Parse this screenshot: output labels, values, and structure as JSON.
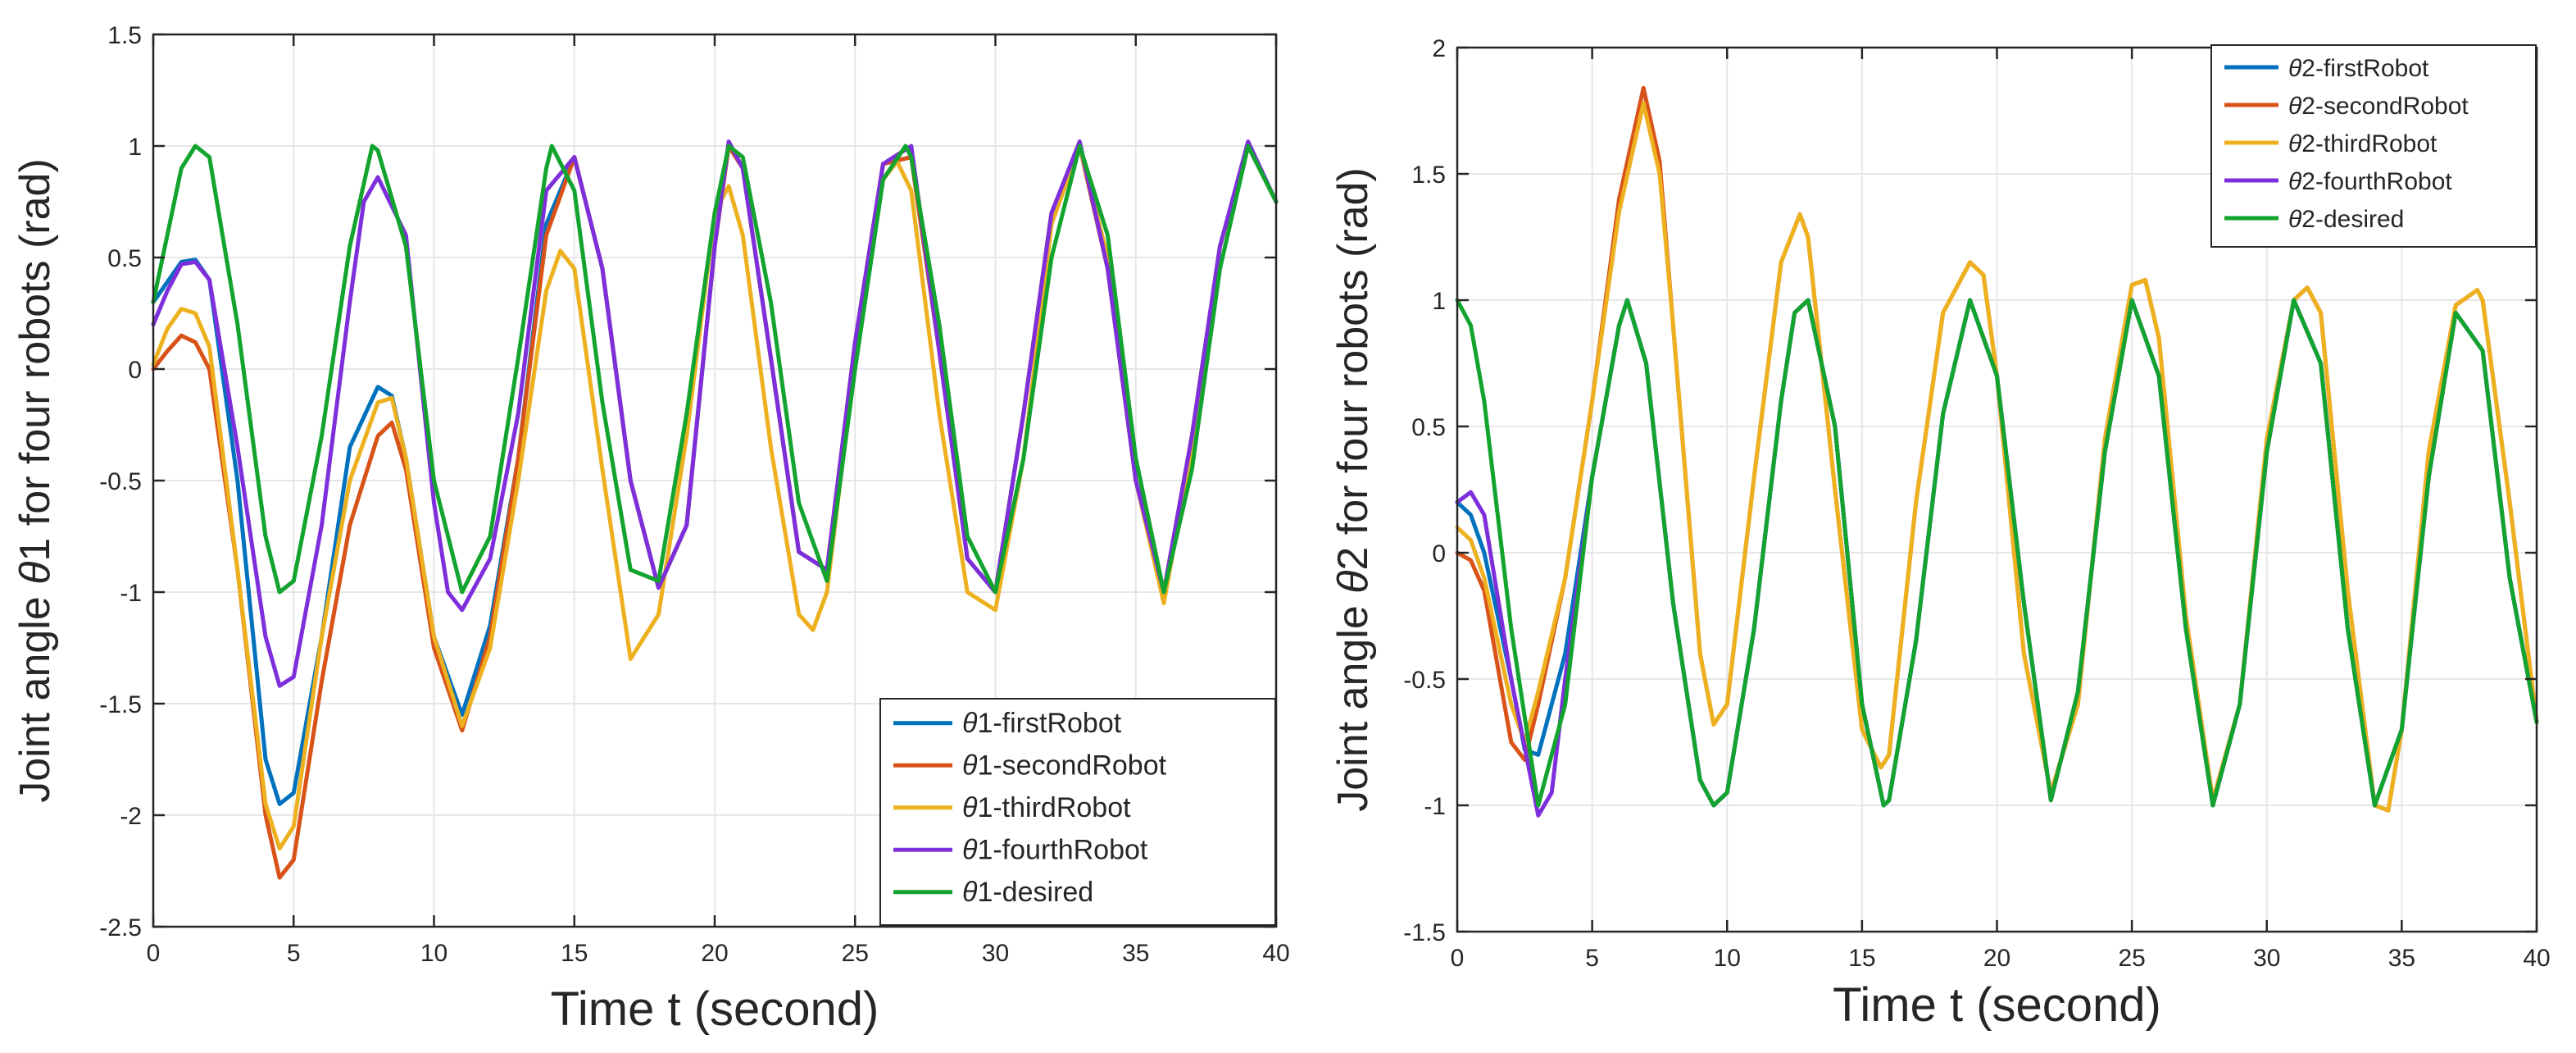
{
  "chart_data": [
    {
      "type": "line",
      "title": "",
      "xlabel": "Time t (second)",
      "ylabel_prefix": "Joint angle ",
      "ylabel_symbol": "θ",
      "ylabel_suffix": "1 for four robots (rad)",
      "xlim": [
        0,
        40
      ],
      "ylim": [
        -2.5,
        1.5
      ],
      "xticks": [
        0,
        5,
        10,
        15,
        20,
        25,
        30,
        35,
        40
      ],
      "yticks": [
        -2.5,
        -2,
        -1.5,
        -1,
        -0.5,
        0,
        0.5,
        1,
        1.5
      ],
      "grid": true,
      "legend_location": "bottom-right",
      "series": [
        {
          "name": "θ1-firstRobot",
          "symbol": "θ",
          "label_rest": "1-firstRobot",
          "color": "#0072BD",
          "x": [
            0,
            1,
            1.5,
            2,
            3,
            4,
            4.5,
            5,
            6,
            7,
            8,
            8.5,
            9,
            10,
            11,
            12,
            13,
            14,
            15,
            16,
            17,
            18,
            19,
            20,
            20.5,
            21,
            22,
            23,
            24,
            25,
            26,
            27,
            28,
            29,
            30,
            31,
            32,
            33,
            34,
            35,
            36,
            37,
            38,
            39,
            40
          ],
          "y": [
            0.3,
            0.48,
            0.49,
            0.4,
            -0.5,
            -1.75,
            -1.95,
            -1.9,
            -1.2,
            -0.35,
            -0.08,
            -0.12,
            -0.4,
            -1.2,
            -1.55,
            -1.15,
            -0.4,
            0.65,
            0.95,
            0.45,
            -0.5,
            -0.98,
            -0.7,
            0.55,
            1.0,
            0.9,
            0.05,
            -0.82,
            -0.9,
            0.12,
            0.92,
            0.95,
            0.08,
            -0.85,
            -1.0,
            -0.2,
            0.7,
            1.0,
            0.45,
            -0.5,
            -1.0,
            -0.3,
            0.55,
            1.0,
            0.75
          ]
        },
        {
          "name": "θ1-secondRobot",
          "symbol": "θ",
          "label_rest": "1-secondRobot",
          "color": "#D95319",
          "x": [
            0,
            0.5,
            1,
            1.5,
            2,
            3,
            4,
            4.5,
            5,
            6,
            7,
            8,
            8.5,
            9,
            10,
            11,
            12,
            13,
            14,
            15,
            16,
            17,
            18,
            19,
            20,
            20.5,
            21,
            22,
            23,
            24,
            25,
            26,
            27,
            28,
            29,
            30,
            31,
            32,
            33,
            34,
            35,
            36,
            37,
            38,
            39,
            40
          ],
          "y": [
            0.0,
            0.08,
            0.15,
            0.12,
            0.0,
            -0.9,
            -2.0,
            -2.28,
            -2.2,
            -1.4,
            -0.7,
            -0.3,
            -0.24,
            -0.45,
            -1.25,
            -1.62,
            -1.2,
            -0.4,
            0.6,
            0.95,
            0.45,
            -0.5,
            -0.98,
            -0.7,
            0.55,
            1.0,
            0.9,
            0.05,
            -0.82,
            -0.9,
            0.12,
            0.92,
            0.95,
            0.08,
            -0.85,
            -1.0,
            -0.2,
            0.7,
            1.0,
            0.45,
            -0.5,
            -1.0,
            -0.3,
            0.55,
            1.0,
            0.75
          ]
        },
        {
          "name": "θ1-thirdRobot",
          "symbol": "θ",
          "label_rest": "1-thirdRobot",
          "color": "#EDB120",
          "x": [
            0,
            0.5,
            1,
            1.5,
            2,
            3,
            4,
            4.5,
            5,
            6,
            7,
            8,
            8.5,
            9,
            10,
            11,
            12,
            13,
            14,
            14.5,
            15,
            16,
            17,
            18,
            19,
            20,
            20.5,
            21,
            22,
            23,
            23.5,
            24,
            25,
            26,
            26.5,
            27,
            28,
            29,
            30,
            31,
            32,
            33,
            34,
            35,
            36,
            37,
            38,
            39,
            40
          ],
          "y": [
            0.02,
            0.18,
            0.27,
            0.25,
            0.1,
            -0.9,
            -1.95,
            -2.15,
            -2.05,
            -1.2,
            -0.5,
            -0.15,
            -0.13,
            -0.4,
            -1.2,
            -1.6,
            -1.25,
            -0.5,
            0.35,
            0.53,
            0.45,
            -0.45,
            -1.3,
            -1.1,
            -0.3,
            0.7,
            0.82,
            0.6,
            -0.35,
            -1.1,
            -1.17,
            -1.0,
            0.05,
            0.85,
            0.93,
            0.8,
            -0.2,
            -1.0,
            -1.08,
            -0.4,
            0.65,
            1.0,
            0.5,
            -0.5,
            -1.05,
            -0.35,
            0.55,
            1.0,
            0.75
          ]
        },
        {
          "name": "θ1-fourthRobot",
          "symbol": "θ",
          "label_rest": "1-fourthRobot",
          "color": "#7E2FDB",
          "x": [
            0,
            0.5,
            1,
            1.5,
            2,
            3,
            4,
            4.5,
            5,
            6,
            7,
            7.5,
            8,
            9,
            10,
            10.5,
            11,
            12,
            13,
            14,
            15,
            16,
            17,
            18,
            19,
            20,
            20.5,
            21,
            22,
            23,
            24,
            25,
            26,
            27,
            28,
            29,
            30,
            31,
            32,
            33,
            34,
            35,
            36,
            37,
            38,
            39,
            40
          ],
          "y": [
            0.2,
            0.35,
            0.47,
            0.48,
            0.4,
            -0.35,
            -1.2,
            -1.42,
            -1.38,
            -0.7,
            0.3,
            0.75,
            0.86,
            0.6,
            -0.6,
            -1.0,
            -1.08,
            -0.85,
            -0.2,
            0.8,
            0.95,
            0.45,
            -0.5,
            -0.98,
            -0.7,
            0.55,
            1.02,
            0.9,
            0.05,
            -0.82,
            -0.9,
            0.12,
            0.92,
            1.0,
            0.08,
            -0.85,
            -1.0,
            -0.2,
            0.7,
            1.02,
            0.45,
            -0.5,
            -1.0,
            -0.3,
            0.55,
            1.02,
            0.75
          ]
        },
        {
          "name": "θ1-desired",
          "symbol": "θ",
          "label_rest": "1-desired",
          "color": "#12A42E",
          "x": [
            0,
            0.5,
            1,
            1.5,
            2,
            3,
            4,
            4.5,
            5,
            6,
            7,
            7.8,
            8,
            9,
            10,
            11,
            12,
            13,
            14,
            14.2,
            15,
            16,
            17,
            18,
            19,
            20,
            20.5,
            21,
            22,
            23,
            24,
            25,
            26,
            26.8,
            27,
            28,
            29,
            30,
            31,
            32,
            33,
            34,
            35,
            36,
            37,
            38,
            39,
            40
          ],
          "y": [
            0.3,
            0.6,
            0.9,
            1.0,
            0.95,
            0.2,
            -0.75,
            -1.0,
            -0.95,
            -0.3,
            0.55,
            1.0,
            0.98,
            0.55,
            -0.5,
            -1.0,
            -0.75,
            0.05,
            0.9,
            1.0,
            0.8,
            -0.15,
            -0.9,
            -0.95,
            -0.2,
            0.7,
            1.0,
            0.95,
            0.3,
            -0.6,
            -0.95,
            0.0,
            0.85,
            1.0,
            0.95,
            0.2,
            -0.75,
            -1.0,
            -0.4,
            0.5,
            1.0,
            0.6,
            -0.4,
            -1.0,
            -0.45,
            0.45,
            1.0,
            0.75
          ]
        }
      ]
    },
    {
      "type": "line",
      "title": "",
      "xlabel": "Time t (second)",
      "ylabel_prefix": "Joint angle ",
      "ylabel_symbol": "θ",
      "ylabel_suffix": "2 for four robots (rad)",
      "xlim": [
        0,
        40
      ],
      "ylim": [
        -1.5,
        2
      ],
      "xticks": [
        0,
        5,
        10,
        15,
        20,
        25,
        30,
        35,
        40
      ],
      "yticks": [
        -1.5,
        -1,
        -0.5,
        0,
        0.5,
        1,
        1.5,
        2
      ],
      "grid": true,
      "legend_location": "top-right",
      "series": [
        {
          "name": "θ2-firstRobot",
          "symbol": "θ",
          "label_rest": "2-firstRobot",
          "color": "#0072BD",
          "x": [
            0,
            0.5,
            1,
            2,
            2.5,
            3,
            4,
            5,
            6,
            6.3,
            7,
            8,
            9,
            9.5,
            10,
            11,
            12,
            12.5,
            13,
            14,
            15,
            15.8,
            16,
            17,
            18,
            19,
            20,
            21,
            22,
            23,
            24,
            25,
            26,
            27,
            28,
            29,
            30,
            31,
            32,
            33,
            34,
            35,
            36,
            37,
            38,
            39,
            40
          ],
          "y": [
            0.2,
            0.15,
            0.0,
            -0.5,
            -0.78,
            -0.8,
            -0.4,
            0.3,
            0.9,
            1.0,
            0.75,
            -0.2,
            -0.9,
            -1.0,
            -0.95,
            -0.3,
            0.6,
            0.95,
            1.0,
            0.5,
            -0.6,
            -1.0,
            -0.98,
            -0.35,
            0.55,
            1.0,
            0.7,
            -0.2,
            -0.98,
            -0.55,
            0.4,
            1.0,
            0.7,
            -0.3,
            -1.0,
            -0.6,
            0.4,
            1.0,
            0.75,
            -0.3,
            -1.0,
            -0.7,
            0.3,
            0.95,
            0.8,
            -0.1,
            -0.67
          ]
        },
        {
          "name": "θ2-secondRobot",
          "symbol": "θ",
          "label_rest": "2-secondRobot",
          "color": "#D95319",
          "x": [
            0,
            0.5,
            1,
            2,
            2.5,
            3,
            4,
            5,
            6,
            6.9,
            7.5,
            8,
            9,
            9.5,
            10,
            11,
            12,
            12.7,
            13,
            14,
            15,
            15.7,
            16,
            17,
            18,
            19,
            19.5,
            20,
            21,
            22,
            23,
            24,
            25,
            25.5,
            26,
            27,
            28,
            29,
            30,
            31,
            31.5,
            32,
            33,
            34,
            34.5,
            35,
            36,
            37,
            37.8,
            38,
            39,
            40
          ],
          "y": [
            0.0,
            -0.03,
            -0.15,
            -0.75,
            -0.82,
            -0.6,
            -0.1,
            0.6,
            1.4,
            1.84,
            1.55,
            0.9,
            -0.4,
            -0.68,
            -0.6,
            0.3,
            1.15,
            1.34,
            1.25,
            0.25,
            -0.7,
            -0.85,
            -0.8,
            0.2,
            0.95,
            1.15,
            1.1,
            0.7,
            -0.4,
            -0.95,
            -0.6,
            0.45,
            1.06,
            1.08,
            0.85,
            -0.25,
            -0.98,
            -0.6,
            0.45,
            1.0,
            1.05,
            0.95,
            -0.15,
            -1.0,
            -1.02,
            -0.7,
            0.4,
            0.98,
            1.04,
            1.0,
            0.2,
            -0.67
          ]
        },
        {
          "name": "θ2-thirdRobot",
          "symbol": "θ",
          "label_rest": "2-thirdRobot",
          "color": "#EDB120",
          "x": [
            0,
            0.5,
            1,
            2,
            2.5,
            3,
            4,
            5,
            6,
            6.9,
            7.5,
            8,
            9,
            9.5,
            10,
            11,
            12,
            12.7,
            13,
            14,
            15,
            15.7,
            16,
            17,
            18,
            19,
            19.5,
            20,
            21,
            22,
            23,
            24,
            25,
            25.5,
            26,
            27,
            28,
            29,
            30,
            31,
            31.5,
            32,
            33,
            34,
            34.5,
            35,
            36,
            37,
            37.8,
            38,
            39,
            40
          ],
          "y": [
            0.1,
            0.05,
            -0.1,
            -0.6,
            -0.75,
            -0.55,
            -0.1,
            0.6,
            1.35,
            1.78,
            1.5,
            0.9,
            -0.4,
            -0.68,
            -0.6,
            0.3,
            1.15,
            1.34,
            1.25,
            0.25,
            -0.7,
            -0.85,
            -0.8,
            0.2,
            0.95,
            1.15,
            1.1,
            0.7,
            -0.4,
            -0.95,
            -0.6,
            0.45,
            1.06,
            1.08,
            0.85,
            -0.25,
            -0.98,
            -0.6,
            0.45,
            1.0,
            1.05,
            0.95,
            -0.15,
            -1.0,
            -1.02,
            -0.7,
            0.4,
            0.98,
            1.04,
            1.0,
            0.2,
            -0.67
          ]
        },
        {
          "name": "θ2-fourthRobot",
          "symbol": "θ",
          "label_rest": "2-fourthRobot",
          "color": "#7E2FDB",
          "x": [
            0,
            0.5,
            1,
            2,
            3,
            3.5,
            4,
            5,
            6,
            6.3,
            7,
            8,
            9,
            9.5,
            10,
            11,
            12,
            12.5,
            13,
            14,
            15,
            15.8,
            16,
            17,
            18,
            19,
            20,
            21,
            22,
            23,
            24,
            25,
            26,
            27,
            28,
            29,
            30,
            31,
            32,
            33,
            34,
            35,
            36,
            37,
            38,
            39,
            40
          ],
          "y": [
            0.2,
            0.24,
            0.15,
            -0.5,
            -1.04,
            -0.95,
            -0.5,
            0.3,
            0.9,
            1.0,
            0.75,
            -0.2,
            -0.9,
            -1.0,
            -0.95,
            -0.3,
            0.6,
            0.95,
            1.0,
            0.5,
            -0.6,
            -1.0,
            -0.98,
            -0.35,
            0.55,
            1.0,
            0.7,
            -0.2,
            -0.98,
            -0.55,
            0.4,
            1.0,
            0.7,
            -0.3,
            -1.0,
            -0.6,
            0.4,
            1.0,
            0.75,
            -0.3,
            -1.0,
            -0.7,
            0.3,
            0.95,
            0.8,
            -0.1,
            -0.67
          ]
        },
        {
          "name": "θ2-desired",
          "symbol": "θ",
          "label_rest": "2-desired",
          "color": "#12A42E",
          "x": [
            0,
            0.5,
            1,
            2,
            3,
            4,
            5,
            6,
            6.3,
            7,
            8,
            9,
            9.5,
            10,
            11,
            12,
            12.5,
            13,
            14,
            15,
            15.8,
            16,
            17,
            18,
            19,
            20,
            21,
            22,
            23,
            24,
            25,
            26,
            27,
            28,
            29,
            30,
            31,
            32,
            33,
            34,
            35,
            36,
            37,
            38,
            39,
            40
          ],
          "y": [
            1.0,
            0.9,
            0.6,
            -0.3,
            -1.0,
            -0.6,
            0.3,
            0.9,
            1.0,
            0.75,
            -0.2,
            -0.9,
            -1.0,
            -0.95,
            -0.3,
            0.6,
            0.95,
            1.0,
            0.5,
            -0.6,
            -1.0,
            -0.98,
            -0.35,
            0.55,
            1.0,
            0.7,
            -0.2,
            -0.98,
            -0.55,
            0.4,
            1.0,
            0.7,
            -0.3,
            -1.0,
            -0.6,
            0.4,
            1.0,
            0.75,
            -0.3,
            -1.0,
            -0.7,
            0.3,
            0.95,
            0.8,
            -0.1,
            -0.67
          ]
        }
      ]
    }
  ]
}
